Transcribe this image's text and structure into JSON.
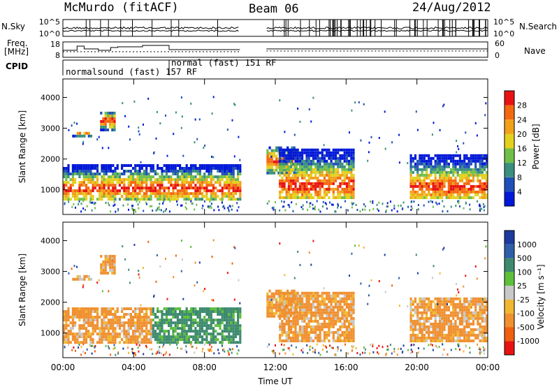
{
  "header": {
    "station": "McMurdo (fitACF)",
    "beam": "Beam 06",
    "date": "24/Aug/2012"
  },
  "side_labels": {
    "nsky": "N.Sky",
    "nsearch": "N.Search",
    "freq_line1": "Freq.",
    "freq_line2": "[MHz]",
    "nave": "Nave",
    "cpid": "CPID"
  },
  "cpid_modes": [
    {
      "label": "normalsound (fast) 157 RF"
    },
    {
      "label": "normal (fast) 151 RF"
    }
  ],
  "chart_data": [
    {
      "type": "line",
      "panel": "noise",
      "ylabels_left": [
        "10^5",
        "10^0"
      ],
      "ylabels_right": [
        "10^5",
        "10^0"
      ]
    },
    {
      "type": "line",
      "panel": "frequency / nave",
      "ylabels_left": [
        "18",
        "8"
      ],
      "ylabels_right": [
        "60",
        "0"
      ]
    },
    {
      "type": "heatmap",
      "panel": "power",
      "ylabel": "Slant Range [km]",
      "yticks": [
        1000,
        2000,
        3000,
        4000
      ],
      "ylim": [
        200,
        4600
      ],
      "colorbar": {
        "label": "Power [dB]",
        "ticks": [
          "4",
          "8",
          "12",
          "16",
          "20",
          "24",
          "28"
        ],
        "colors": [
          "#0018d8",
          "#1f4fb8",
          "#3a8f7e",
          "#6fbf4a",
          "#e3d11e",
          "#f2a11a",
          "#f46812",
          "#e81212"
        ]
      }
    },
    {
      "type": "heatmap",
      "panel": "velocity",
      "ylabel": "Slant Range [km]",
      "yticks": [
        1000,
        2000,
        3000,
        4000
      ],
      "ylim": [
        200,
        4600
      ],
      "xlabel": "Time UT",
      "xticks": [
        "00:00",
        "04:00",
        "08:00",
        "12:00",
        "16:00",
        "20:00",
        "00:00"
      ],
      "colorbar": {
        "label": "Velocity [m s⁻¹]",
        "ticks": [
          "1000",
          "500",
          "100",
          "25",
          "-25",
          "-100",
          "-500",
          "-1000"
        ],
        "colors": [
          "#1d3a9e",
          "#2f5fa8",
          "#3e8a6f",
          "#5dbf3a",
          "#c8c8c8",
          "#f0b830",
          "#f09030",
          "#f06010",
          "#e81212"
        ]
      }
    }
  ]
}
